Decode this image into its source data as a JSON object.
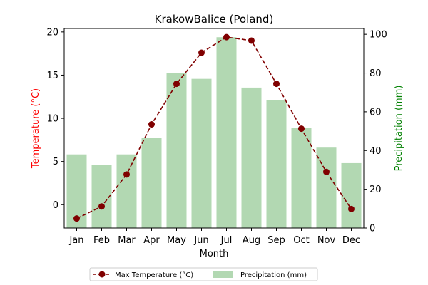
{
  "chart_data": {
    "type": "bar+line",
    "title": "KrakowBalice (Poland)",
    "xlabel": "Month",
    "categories": [
      "Jan",
      "Feb",
      "Mar",
      "Apr",
      "May",
      "Jun",
      "Jul",
      "Aug",
      "Sep",
      "Oct",
      "Nov",
      "Dec"
    ],
    "left_axis": {
      "label": "Temperature (°C)",
      "color": "#ff0000",
      "ylim": [
        -2.7,
        20.4
      ],
      "ticks": [
        0,
        5,
        10,
        15,
        20
      ]
    },
    "right_axis": {
      "label": "Precipitation (mm)",
      "color": "#008000",
      "ylim": [
        0,
        103
      ],
      "ticks": [
        0,
        20,
        40,
        60,
        80,
        100
      ]
    },
    "series": [
      {
        "name": "Max Temperature (°C)",
        "type": "line",
        "axis": "left",
        "color": "#800000",
        "linestyle": "dashed",
        "values": [
          -1.6,
          -0.2,
          3.5,
          9.3,
          14.0,
          17.6,
          19.4,
          19.0,
          14.0,
          8.8,
          3.8,
          -0.5
        ]
      },
      {
        "name": "Precipitation (mm)",
        "type": "bar",
        "axis": "right",
        "color": "#b2d8b2",
        "values": [
          38,
          32.5,
          38,
          46.5,
          80,
          77,
          98.5,
          72.5,
          66,
          51.5,
          41.5,
          33.5
        ]
      }
    ],
    "legend_position": "bottom-center",
    "grid": false
  }
}
